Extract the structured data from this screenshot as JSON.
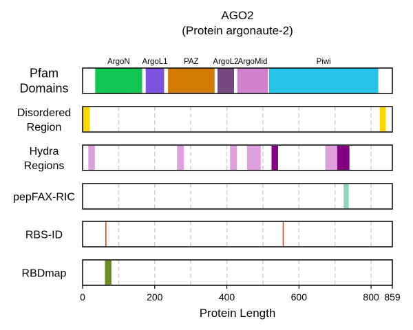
{
  "chart_data": {
    "type": "track",
    "title": "AGO2",
    "subtitle": "(Protein argonaute-2)",
    "xlabel": "Protein Length",
    "xlim": [
      0,
      859
    ],
    "xticks": [
      0,
      200,
      400,
      600,
      800,
      859
    ],
    "xtick_labels": [
      "0",
      "200",
      "400",
      "600",
      "800",
      "859"
    ],
    "grid": "dashed vertical at 100-unit steps",
    "gridlines": [
      100,
      200,
      300,
      400,
      500,
      600,
      700,
      800
    ],
    "tracks": [
      {
        "label": "Pfam Domains",
        "label_lines": [
          "Pfam",
          "Domains"
        ],
        "segments": [
          {
            "name": "ArgoN",
            "start": 35,
            "end": 165,
            "color": "#12c452"
          },
          {
            "name": "ArgoL1",
            "start": 175,
            "end": 226,
            "color": "#7e52dc"
          },
          {
            "name": "PAZ",
            "start": 237,
            "end": 366,
            "color": "#d07a03"
          },
          {
            "name": "ArgoL2",
            "start": 374,
            "end": 420,
            "color": "#754a7e"
          },
          {
            "name": "ArgoMid",
            "start": 429,
            "end": 514,
            "color": "#ce82d0"
          },
          {
            "name": "Piwi",
            "start": 517,
            "end": 820,
            "color": "#29c2e8"
          }
        ]
      },
      {
        "label": "Disordered Region",
        "label_lines": [
          "Disordered",
          "Region"
        ],
        "segments": [
          {
            "start": 0,
            "end": 20,
            "color": "#ffd700"
          },
          {
            "start": 824,
            "end": 841,
            "color": "#ffd700"
          }
        ]
      },
      {
        "label": "Hydra Regions",
        "label_lines": [
          "Hydra",
          "Regions"
        ],
        "segments": [
          {
            "start": 16,
            "end": 34,
            "color": "#dda0dd"
          },
          {
            "start": 262,
            "end": 281,
            "color": "#dda0dd"
          },
          {
            "start": 409,
            "end": 428,
            "color": "#dda0dd"
          },
          {
            "start": 456,
            "end": 494,
            "color": "#dda0dd"
          },
          {
            "start": 524,
            "end": 542,
            "color": "#800080"
          },
          {
            "start": 673,
            "end": 706,
            "color": "#dda0dd"
          },
          {
            "start": 706,
            "end": 740,
            "color": "#800080"
          }
        ]
      },
      {
        "label": "pepFAX-RIC",
        "label_lines": [
          "pepFAX-RIC"
        ],
        "segments": [
          {
            "start": 724,
            "end": 738,
            "color": "#8fd3c1"
          }
        ]
      },
      {
        "label": "RBS-ID",
        "label_lines": [
          "RBS-ID"
        ],
        "segments": [
          {
            "start": 63,
            "end": 65,
            "color": "#e8450a"
          },
          {
            "start": 555,
            "end": 557,
            "color": "#e8450a"
          }
        ]
      },
      {
        "label": "RBDmap",
        "label_lines": [
          "RBDmap"
        ],
        "segments": [
          {
            "start": 62,
            "end": 80,
            "color": "#6b8e23"
          }
        ]
      }
    ]
  }
}
